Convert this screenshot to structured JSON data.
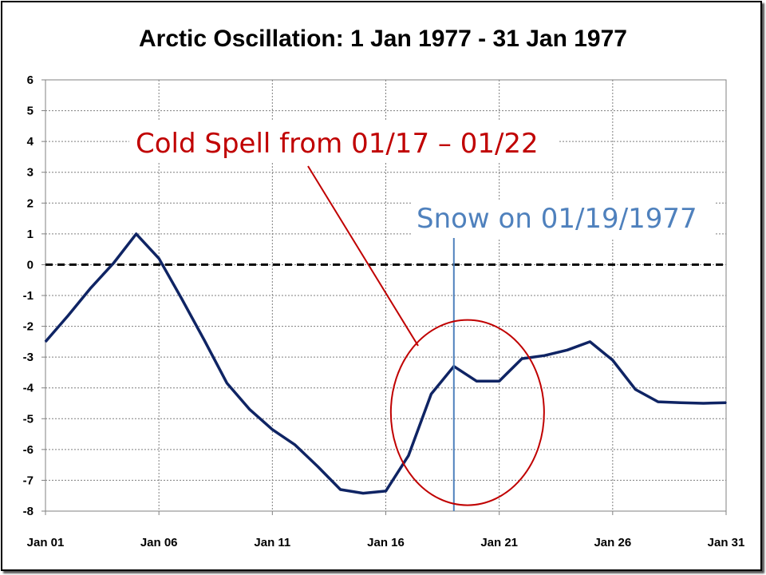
{
  "chart_data": {
    "type": "line",
    "title": "Arctic Oscillation: 1 Jan 1977 - 31 Jan 1977",
    "xlabel": "",
    "ylabel": "",
    "x_days": [
      1,
      2,
      3,
      4,
      5,
      6,
      7,
      8,
      9,
      10,
      11,
      12,
      13,
      14,
      15,
      16,
      17,
      18,
      19,
      20,
      21,
      22,
      23,
      24,
      25,
      26,
      27,
      28,
      29,
      30,
      31
    ],
    "x_tick_labels": [
      {
        "day": 1,
        "label": "Jan 01"
      },
      {
        "day": 6,
        "label": "Jan 06"
      },
      {
        "day": 11,
        "label": "Jan 11"
      },
      {
        "day": 16,
        "label": "Jan 16"
      },
      {
        "day": 21,
        "label": "Jan 21"
      },
      {
        "day": 26,
        "label": "Jan 26"
      },
      {
        "day": 31,
        "label": "Jan 31"
      }
    ],
    "ylim": [
      -8,
      6
    ],
    "y_ticks": [
      6,
      5,
      4,
      3,
      2,
      1,
      0,
      -1,
      -2,
      -3,
      -4,
      -5,
      -6,
      -7,
      -8
    ],
    "grid": true,
    "series": [
      {
        "name": "Arctic Oscillation",
        "color": "#0f2464",
        "values": [
          -2.5,
          -1.65,
          -0.75,
          0.05,
          1.0,
          0.2,
          -1.1,
          -2.45,
          -3.85,
          -4.7,
          -5.35,
          -5.85,
          -6.55,
          -7.3,
          -7.42,
          -7.35,
          -6.2,
          -4.2,
          -3.3,
          -3.78,
          -3.78,
          -3.05,
          -2.95,
          -2.77,
          -2.5,
          -3.1,
          -4.05,
          -4.45,
          -4.48,
          -4.5,
          -4.48
        ]
      }
    ],
    "reference_line": {
      "y": 0,
      "style": "dashed",
      "color": "#000000"
    },
    "annotations": {
      "cold_spell": {
        "text": "Cold Spell from 01/17 – 01/22",
        "color": "#c00000",
        "circle_center": {
          "day": 19.6,
          "value": -4.8
        }
      },
      "snow": {
        "text": "Snow on 01/19/1977",
        "color": "#4f81bd",
        "day": 19
      }
    }
  }
}
